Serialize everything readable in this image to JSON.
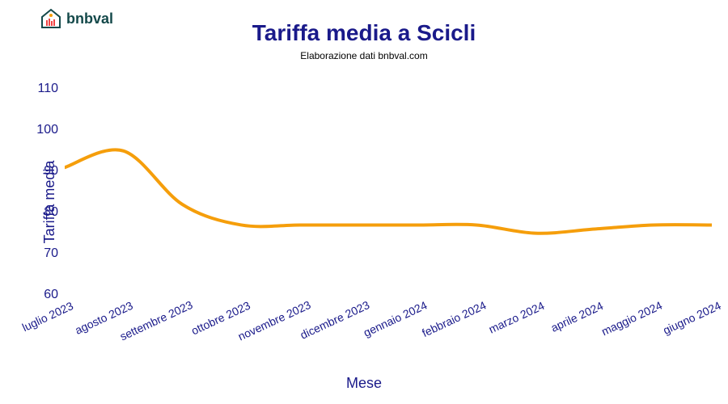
{
  "logo": {
    "text": "bnbval"
  },
  "title": "Tariffa media a Scicli",
  "subtitle": "Elaborazione dati bnbval.com",
  "x_axis_label": "Mese",
  "y_axis_label": "Tariffa media",
  "chart": {
    "type": "line",
    "line_color": "#f59e0b",
    "line_width": 4,
    "background_color": "#ffffff",
    "title_color": "#1a1a8a",
    "axis_label_color": "#1a1a8a",
    "tick_color": "#1a1a8a",
    "title_fontsize": 28,
    "axis_label_fontsize": 18,
    "tick_fontsize": 16,
    "ylim": [
      60,
      115
    ],
    "y_ticks": [
      60,
      70,
      80,
      90,
      100,
      110
    ],
    "x_labels": [
      "luglio 2023",
      "agosto 2023",
      "settembre 2023",
      "ottobre 2023",
      "novembre 2023",
      "dicembre 2023",
      "gennaio 2024",
      "febbraio 2024",
      "marzo 2024",
      "aprile 2024",
      "maggio 2024",
      "giugno 2024"
    ],
    "values": [
      91,
      95,
      82,
      77,
      77,
      77,
      77,
      77,
      75,
      76,
      77,
      77
    ],
    "x_tick_rotation": -25
  }
}
